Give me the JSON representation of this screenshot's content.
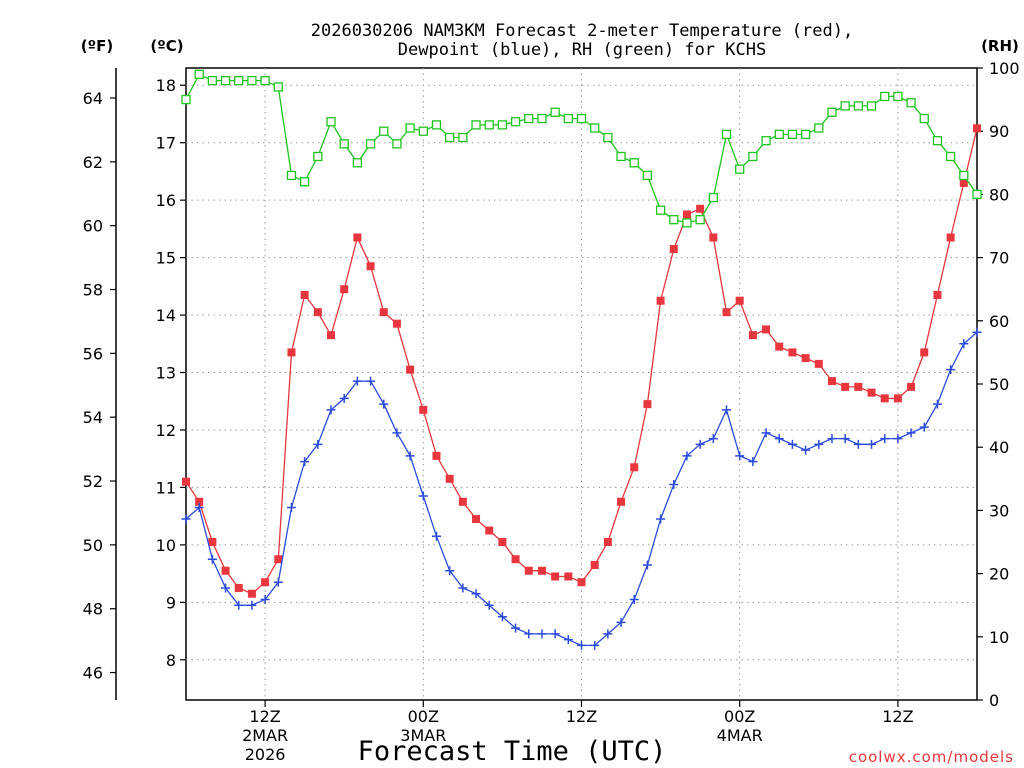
{
  "chart_data": {
    "type": "line",
    "title": "2026030206 NAM3KM Forecast 2-meter Temperature (red),",
    "subtitle": "Dewpoint (blue), RH (green) for KCHS",
    "xlabel": "Forecast Time (UTC)",
    "credit": "coolwx.com/models",
    "x_start_hour": 6,
    "xlim": [
      6,
      66
    ],
    "x_ticks": [
      {
        "hour": 12,
        "label": "12Z",
        "sub1": "2MAR",
        "sub2": "2026"
      },
      {
        "hour": 24,
        "label": "00Z",
        "sub1": "3MAR",
        "sub2": ""
      },
      {
        "hour": 36,
        "label": "12Z",
        "sub1": "",
        "sub2": ""
      },
      {
        "hour": 48,
        "label": "00Z",
        "sub1": "4MAR",
        "sub2": ""
      },
      {
        "hour": 60,
        "label": "12Z",
        "sub1": "",
        "sub2": ""
      }
    ],
    "axes": {
      "celsius": {
        "label": "(ºC)",
        "ylim": [
          7.3,
          18.3
        ],
        "ticks": [
          "8",
          "9",
          "10",
          "11",
          "12",
          "13",
          "14",
          "15",
          "16",
          "17",
          "18"
        ]
      },
      "fahrenheit": {
        "label": "(ºF)",
        "ticks": [
          "46",
          "48",
          "50",
          "52",
          "54",
          "56",
          "58",
          "60",
          "62",
          "64"
        ]
      },
      "rh": {
        "label": "(RH)",
        "ylim": [
          0,
          100
        ],
        "ticks": [
          "0",
          "10",
          "20",
          "30",
          "40",
          "50",
          "60",
          "70",
          "80",
          "90",
          "100"
        ]
      }
    },
    "series": [
      {
        "name": "2-meter Temperature",
        "unit": "C",
        "color": "#e8363e",
        "marker": "square-filled",
        "values": [
          11.1,
          10.75,
          10.05,
          9.55,
          9.25,
          9.15,
          9.35,
          9.75,
          13.35,
          14.35,
          14.05,
          13.65,
          14.45,
          15.35,
          14.85,
          14.05,
          13.85,
          13.05,
          12.35,
          11.55,
          11.15,
          10.75,
          10.45,
          10.25,
          10.05,
          9.75,
          9.55,
          9.55,
          9.45,
          9.45,
          9.35,
          9.65,
          10.05,
          10.75,
          11.35,
          12.45,
          14.25,
          15.15,
          15.75,
          15.85,
          15.35,
          14.05,
          14.25,
          13.65,
          13.75,
          13.45,
          13.35,
          13.25,
          13.15,
          12.85,
          12.75,
          12.75,
          12.65,
          12.55,
          12.55,
          12.75,
          13.35,
          14.35,
          15.35,
          16.3,
          17.25
        ]
      },
      {
        "name": "Dewpoint",
        "unit": "C",
        "color": "#2b4bdd",
        "marker": "plus",
        "values": [
          10.45,
          10.65,
          9.75,
          9.25,
          8.95,
          8.95,
          9.05,
          9.35,
          10.65,
          11.45,
          11.75,
          12.35,
          12.55,
          12.85,
          12.85,
          12.45,
          11.95,
          11.55,
          10.85,
          10.15,
          9.55,
          9.25,
          9.15,
          8.95,
          8.75,
          8.55,
          8.45,
          8.45,
          8.45,
          8.35,
          8.25,
          8.25,
          8.45,
          8.65,
          9.05,
          9.65,
          10.45,
          11.05,
          11.55,
          11.75,
          11.85,
          12.35,
          11.55,
          11.45,
          11.95,
          11.85,
          11.75,
          11.65,
          11.75,
          11.85,
          11.85,
          11.75,
          11.75,
          11.85,
          11.85,
          11.95,
          12.05,
          12.45,
          13.05,
          13.5,
          13.7
        ]
      },
      {
        "name": "RH",
        "unit": "%",
        "color": "#1ec51e",
        "marker": "square-open",
        "values": [
          95.0,
          99.0,
          98.0,
          98.0,
          98.0,
          98.0,
          98.0,
          97.0,
          83.0,
          82.0,
          86.0,
          91.5,
          88.0,
          85.0,
          88.0,
          90.0,
          88.0,
          90.5,
          90.0,
          91.0,
          89.0,
          89.0,
          91.0,
          91.0,
          91.0,
          91.5,
          92.0,
          92.0,
          93.0,
          92.0,
          92.0,
          90.5,
          89.0,
          86.0,
          85.0,
          83.0,
          77.5,
          76.0,
          75.5,
          76.0,
          79.5,
          89.5,
          84.0,
          86.0,
          88.5,
          89.5,
          89.5,
          89.5,
          90.5,
          93.0,
          94.0,
          94.0,
          94.0,
          95.5,
          95.5,
          94.5,
          92.0,
          88.5,
          86.0,
          83.0,
          80.0
        ]
      }
    ]
  }
}
